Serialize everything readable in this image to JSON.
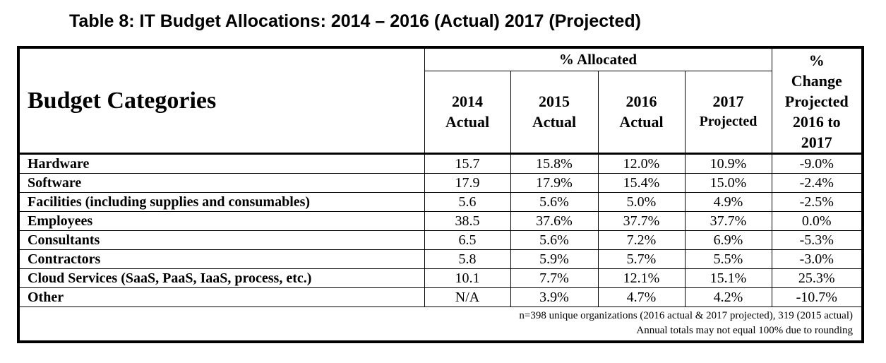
{
  "title": "Table 8: IT Budget Allocations: 2014 – 2016 (Actual) 2017 (Projected)",
  "table": {
    "category_header": "Budget Categories",
    "allocated_header": "% Allocated",
    "change_header": [
      "%",
      "Change",
      "Projected",
      "2016 to",
      "2017"
    ],
    "year_headers": [
      {
        "year": "2014",
        "label": "Actual"
      },
      {
        "year": "2015",
        "label": "Actual"
      },
      {
        "year": "2016",
        "label": "Actual"
      },
      {
        "year": "2017",
        "label": "Projected"
      }
    ],
    "rows": [
      {
        "category": "Hardware",
        "values": [
          "15.7",
          "15.8%",
          "12.0%",
          "10.9%",
          "-9.0%"
        ]
      },
      {
        "category": "Software",
        "values": [
          "17.9",
          "17.9%",
          "15.4%",
          "15.0%",
          "-2.4%"
        ]
      },
      {
        "category": "Facilities (including supplies and consumables)",
        "values": [
          "5.6",
          "5.6%",
          "5.0%",
          "4.9%",
          "-2.5%"
        ]
      },
      {
        "category": "Employees",
        "values": [
          "38.5",
          "37.6%",
          "37.7%",
          "37.7%",
          "0.0%"
        ]
      },
      {
        "category": "Consultants",
        "values": [
          "6.5",
          "5.6%",
          "7.2%",
          "6.9%",
          "-5.3%"
        ]
      },
      {
        "category": "Contractors",
        "values": [
          "5.8",
          "5.9%",
          "5.7%",
          "5.5%",
          "-3.0%"
        ]
      },
      {
        "category": "Cloud Services (SaaS, PaaS, IaaS, process, etc.)",
        "values": [
          "10.1",
          "7.7%",
          "12.1%",
          "15.1%",
          "25.3%"
        ]
      },
      {
        "category": "Other",
        "values": [
          "N/A",
          "3.9%",
          "4.7%",
          "4.2%",
          "-10.7%"
        ]
      }
    ],
    "notes": [
      "n=398 unique organizations (2016 actual & 2017 projected), 319 (2015 actual)",
      "Annual totals may not equal 100% due to rounding"
    ]
  }
}
